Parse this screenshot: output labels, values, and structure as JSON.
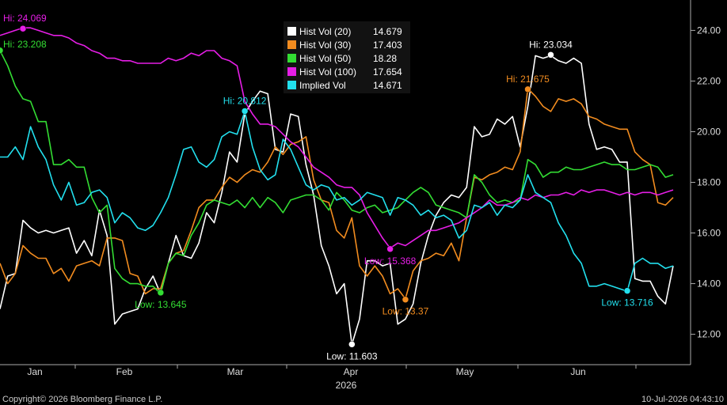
{
  "footer": {
    "copyright": "Copyright© 2026 Bloomberg Finance L.P.",
    "timestamp": "10-Jul-2026 04:43:10"
  },
  "chart_data": {
    "type": "line",
    "year_label": "2026",
    "x_tick_labels": [
      "Jan",
      "Feb",
      "Mar",
      "Apr",
      "May",
      "Jun"
    ],
    "y_ticks": [
      "12.00",
      "14.00",
      "16.00",
      "18.00",
      "20.00",
      "22.00",
      "24.00"
    ],
    "ylim": [
      10.8,
      25.2
    ],
    "grid": false,
    "legend_position": "top-center",
    "series": [
      {
        "name": "Hist Vol (20)",
        "last": "14.679",
        "color": "#ffffff",
        "values": [
          13.0,
          14.3,
          14.4,
          16.5,
          16.2,
          16.0,
          16.1,
          16.0,
          16.1,
          16.2,
          15.2,
          15.7,
          15.1,
          16.9,
          15.9,
          12.4,
          12.8,
          12.9,
          13.0,
          13.8,
          14.3,
          13.6,
          14.8,
          15.9,
          15.1,
          15.0,
          15.6,
          16.8,
          16.4,
          17.6,
          19.2,
          18.8,
          20.7,
          21.2,
          21.6,
          21.5,
          19.3,
          19.2,
          20.7,
          20.6,
          18.7,
          17.5,
          15.5,
          14.7,
          13.6,
          14.0,
          11.6,
          12.6,
          14.9,
          14.9,
          14.7,
          14.8,
          12.4,
          12.6,
          13.2,
          14.8,
          15.9,
          16.7,
          17.2,
          17.5,
          17.4,
          17.8,
          20.2,
          19.8,
          19.9,
          20.5,
          20.3,
          20.6,
          19.4,
          21.0,
          23.0,
          22.9,
          23.0,
          22.8,
          22.7,
          22.9,
          22.7,
          20.3,
          19.3,
          19.4,
          19.3,
          18.8,
          18.8,
          14.2,
          14.1,
          14.1,
          13.5,
          13.2,
          14.7
        ]
      },
      {
        "name": "Hist Vol (30)",
        "last": "17.403",
        "color": "#f28c1f",
        "values": [
          14.8,
          14.0,
          14.4,
          15.5,
          15.2,
          15.0,
          15.0,
          14.4,
          14.6,
          14.1,
          14.7,
          14.8,
          14.9,
          14.7,
          15.8,
          15.8,
          15.7,
          14.4,
          14.3,
          13.6,
          13.8,
          13.8,
          14.8,
          15.2,
          15.3,
          16.1,
          17.0,
          17.3,
          17.3,
          17.8,
          18.2,
          18.0,
          18.3,
          18.5,
          18.4,
          18.8,
          19.4,
          19.1,
          19.5,
          19.6,
          19.8,
          18.1,
          17.3,
          17.2,
          16.1,
          15.8,
          16.6,
          14.7,
          14.3,
          14.7,
          14.3,
          13.6,
          13.8,
          13.4,
          14.5,
          14.9,
          15.0,
          15.2,
          15.1,
          15.6,
          14.9,
          16.6,
          18.2,
          18.1,
          18.3,
          18.4,
          18.6,
          18.5,
          19.2,
          21.7,
          21.4,
          21.0,
          20.8,
          21.3,
          21.2,
          21.3,
          21.1,
          20.6,
          20.5,
          20.3,
          20.2,
          20.1,
          20.1,
          19.2,
          18.9,
          18.7,
          17.2,
          17.1,
          17.4
        ]
      },
      {
        "name": "Hist Vol (50)",
        "last": "18.28",
        "color": "#33dd33",
        "values": [
          23.2,
          22.6,
          21.8,
          21.3,
          21.2,
          20.4,
          20.4,
          18.7,
          18.7,
          18.9,
          18.6,
          18.6,
          17.4,
          16.8,
          17.1,
          14.6,
          14.2,
          14.0,
          14.0,
          13.9,
          13.9,
          13.6,
          14.8,
          15.2,
          15.1,
          15.9,
          16.4,
          17.1,
          17.3,
          17.2,
          17.1,
          17.3,
          17.0,
          17.4,
          17.0,
          17.4,
          17.2,
          16.8,
          17.3,
          17.4,
          17.5,
          17.5,
          17.3,
          16.9,
          17.6,
          17.3,
          16.9,
          16.8,
          17.0,
          17.1,
          16.8,
          16.9,
          17.0,
          17.3,
          17.6,
          17.8,
          17.6,
          17.1,
          17.0,
          16.9,
          16.8,
          16.6,
          18.3,
          18.0,
          17.5,
          17.2,
          17.3,
          17.2,
          17.3,
          18.9,
          18.7,
          18.2,
          18.4,
          18.4,
          18.6,
          18.5,
          18.5,
          18.6,
          18.7,
          18.8,
          18.7,
          18.7,
          18.5,
          18.5,
          18.6,
          18.7,
          18.6,
          18.2,
          18.3
        ]
      },
      {
        "name": "Hist Vol (100)",
        "last": "17.654",
        "color": "#e61ee6",
        "values": [
          23.8,
          23.9,
          24.0,
          24.1,
          24.1,
          24.0,
          23.9,
          23.8,
          23.8,
          23.7,
          23.5,
          23.4,
          23.2,
          23.1,
          22.9,
          22.9,
          22.8,
          22.8,
          22.7,
          22.7,
          22.7,
          22.7,
          22.9,
          22.8,
          22.9,
          23.1,
          23.0,
          23.2,
          23.2,
          22.9,
          22.8,
          22.6,
          21.2,
          20.7,
          20.3,
          20.3,
          20.2,
          19.9,
          19.6,
          19.4,
          19.0,
          18.6,
          18.4,
          18.2,
          17.9,
          17.8,
          17.8,
          17.5,
          16.8,
          16.3,
          15.8,
          15.4,
          15.6,
          15.5,
          15.7,
          15.9,
          16.1,
          16.1,
          16.2,
          16.3,
          16.4,
          16.6,
          16.8,
          17.0,
          17.3,
          17.1,
          17.1,
          17.2,
          17.4,
          17.3,
          17.5,
          17.4,
          17.5,
          17.5,
          17.6,
          17.5,
          17.7,
          17.6,
          17.7,
          17.7,
          17.6,
          17.5,
          17.6,
          17.5,
          17.6,
          17.6,
          17.5,
          17.6,
          17.7
        ]
      },
      {
        "name": "Implied Vol",
        "last": "14.671",
        "color": "#22e0ee",
        "values": [
          19.0,
          19.0,
          19.4,
          18.9,
          20.2,
          19.4,
          18.9,
          17.9,
          17.3,
          18.0,
          17.1,
          17.2,
          17.6,
          17.7,
          17.4,
          16.4,
          16.8,
          16.6,
          16.2,
          16.1,
          16.3,
          16.8,
          17.4,
          18.3,
          19.3,
          19.4,
          18.8,
          18.6,
          18.9,
          19.8,
          20.0,
          19.9,
          20.8,
          19.4,
          18.5,
          18.1,
          18.3,
          19.7,
          19.3,
          18.6,
          17.9,
          17.7,
          17.9,
          17.8,
          17.3,
          17.4,
          17.1,
          17.3,
          17.6,
          17.5,
          17.4,
          16.7,
          17.4,
          17.3,
          17.1,
          16.7,
          16.9,
          16.6,
          16.7,
          16.5,
          15.8,
          16.1,
          17.1,
          17.0,
          17.2,
          16.7,
          17.1,
          17.0,
          17.3,
          18.3,
          17.6,
          17.4,
          17.2,
          16.4,
          15.9,
          15.2,
          14.8,
          13.9,
          13.9,
          14.0,
          13.9,
          13.8,
          13.7,
          14.8,
          15.0,
          14.8,
          14.8,
          14.6,
          14.7
        ]
      }
    ],
    "annotations": [
      {
        "label": "Hi: 24.069",
        "series": 3,
        "index": 3,
        "value": 24.069,
        "color": "#e61ee6",
        "anchor": "above"
      },
      {
        "label": "Hi: 23.208",
        "series": 2,
        "index": 0,
        "value": 23.208,
        "color": "#33dd33",
        "anchor": "right"
      },
      {
        "label": "Hi: 20.812",
        "series": 4,
        "index": 32,
        "value": 20.812,
        "color": "#22e0ee",
        "anchor": "above"
      },
      {
        "label": "Hi: 23.034",
        "series": 0,
        "index": 72,
        "value": 23.034,
        "color": "#ffffff",
        "anchor": "above"
      },
      {
        "label": "Hi: 21.675",
        "series": 1,
        "index": 69,
        "value": 21.675,
        "color": "#f28c1f",
        "anchor": "above"
      },
      {
        "label": "Low: 13.645",
        "series": 2,
        "index": 21,
        "value": 13.645,
        "color": "#33dd33",
        "anchor": "below"
      },
      {
        "label": "Low: 11.603",
        "series": 0,
        "index": 46,
        "value": 11.603,
        "color": "#ffffff",
        "anchor": "below"
      },
      {
        "label": "Low: 15.368",
        "series": 3,
        "index": 51,
        "value": 15.368,
        "color": "#e61ee6",
        "anchor": "below"
      },
      {
        "label": "Low: 13.37",
        "series": 1,
        "index": 53,
        "value": 13.37,
        "color": "#f28c1f",
        "anchor": "below"
      },
      {
        "label": "Low: 13.716",
        "series": 4,
        "index": 82,
        "value": 13.716,
        "color": "#22e0ee",
        "anchor": "below"
      }
    ]
  }
}
